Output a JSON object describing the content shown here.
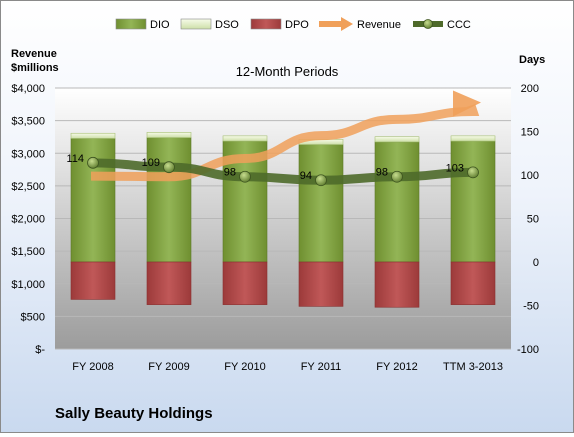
{
  "chart_data": {
    "type": "bar",
    "title": "12-Month Periods",
    "company": "Sally Beauty Holdings",
    "left_axis_label": [
      "Revenue",
      "$millions"
    ],
    "right_axis_label": "Days",
    "categories": [
      "FY 2008",
      "FY 2009",
      "FY 2010",
      "FY 2011",
      "FY 2012",
      "TTM 3-2013"
    ],
    "left_ylim": [
      0,
      4000
    ],
    "left_ticks": [
      "$-",
      "$500",
      "$1,000",
      "$1,500",
      "$2,000",
      "$2,500",
      "$3,000",
      "$3,500",
      "$4,000"
    ],
    "right_ylim": [
      -100,
      200
    ],
    "right_ticks": [
      "-100",
      "-50",
      "0",
      "50",
      "100",
      "150",
      "200"
    ],
    "legend_position": "top",
    "series": [
      {
        "name": "DIO",
        "axis": "right",
        "kind": "stacked-bar",
        "color": "#7a9a3a",
        "values": [
          142,
          143,
          139,
          135,
          138,
          139
        ]
      },
      {
        "name": "DSO",
        "axis": "right",
        "kind": "stacked-bar",
        "color": "#e8f0d0",
        "values": [
          6,
          6,
          6,
          6,
          6,
          6
        ]
      },
      {
        "name": "DPO",
        "axis": "right",
        "kind": "stacked-bar-negative",
        "color": "#b04a4a",
        "values": [
          -43,
          -49,
          -49,
          -51,
          -52,
          -49
        ]
      },
      {
        "name": "Revenue",
        "axis": "left",
        "kind": "trend-arrow",
        "color": "#f0a05a",
        "values": [
          2650,
          2640,
          2920,
          3270,
          3520,
          3640
        ]
      },
      {
        "name": "CCC",
        "axis": "right",
        "kind": "line",
        "color": "#4e6a2a",
        "values": [
          114,
          109,
          98,
          94,
          98,
          103
        ],
        "labels": [
          "114",
          "109",
          "98",
          "94",
          "98",
          "103"
        ]
      }
    ]
  }
}
